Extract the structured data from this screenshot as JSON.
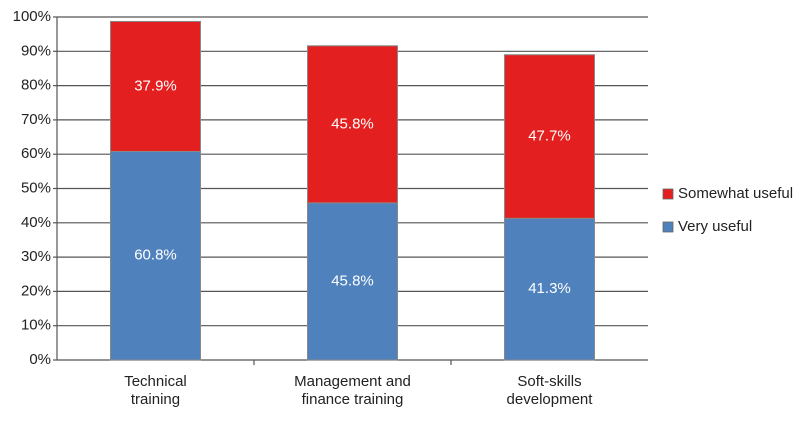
{
  "chart_data": {
    "type": "stacked_bar",
    "categories": [
      "Technical\ntraining",
      "Management and\nfinance training",
      "Soft-skills\ndevelopment"
    ],
    "series": [
      {
        "name": "Very useful",
        "color": "#4f81bd",
        "values": [
          60.8,
          45.8,
          41.3
        ],
        "value_labels": [
          "60.8%",
          "45.8%",
          "41.3%"
        ]
      },
      {
        "name": "Somewhat useful",
        "color": "#e3201f",
        "values": [
          37.9,
          45.8,
          47.7
        ],
        "value_labels": [
          "37.9%",
          "45.8%",
          "47.7%"
        ]
      }
    ],
    "ylim": [
      0,
      100
    ],
    "yticks": [
      {
        "value": 0,
        "label": "0%"
      },
      {
        "value": 10,
        "label": "10%"
      },
      {
        "value": 20,
        "label": "20%"
      },
      {
        "value": 30,
        "label": "30%"
      },
      {
        "value": 40,
        "label": "40%"
      },
      {
        "value": 50,
        "label": "50%"
      },
      {
        "value": 60,
        "label": "60%"
      },
      {
        "value": 70,
        "label": "70%"
      },
      {
        "value": 80,
        "label": "80%"
      },
      {
        "value": 90,
        "label": "90%"
      },
      {
        "value": 100,
        "label": "100%"
      }
    ],
    "grid": true,
    "legend": "right"
  }
}
